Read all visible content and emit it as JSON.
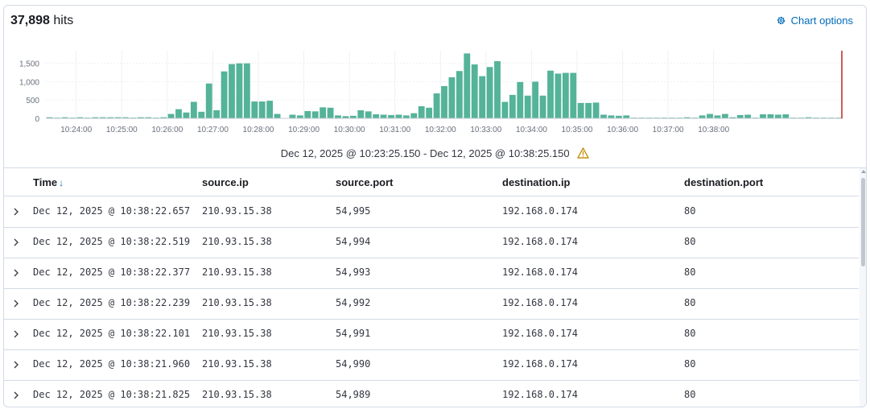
{
  "header": {
    "hits_count": "37,898",
    "hits_label": "hits",
    "chart_options_label": "Chart options",
    "chart_options_icon": "gear-icon"
  },
  "time_range": {
    "label": "Dec 12, 2025 @ 10:23:25.150 - Dec 12, 2025 @ 10:38:25.150",
    "warning_icon": "warning-icon"
  },
  "colors": {
    "bar": "#54b399",
    "marker": "#bd271e",
    "grid": "#eef0f3",
    "accent": "#006bb8"
  },
  "chart_data": {
    "type": "bar",
    "title": "",
    "xlabel": "",
    "ylabel": "",
    "ylim": [
      0,
      1800
    ],
    "y_ticks": [
      0,
      500,
      1000,
      1500
    ],
    "y_tick_labels": [
      "0",
      "500",
      "1,000",
      "1,500"
    ],
    "x_tick_labels": [
      "10:24:00",
      "10:25:00",
      "10:26:00",
      "10:27:00",
      "10:28:00",
      "10:29:00",
      "10:30:00",
      "10:31:00",
      "10:32:00",
      "10:33:00",
      "10:34:00",
      "10:35:00",
      "10:36:00",
      "10:37:00",
      "10:38:00"
    ],
    "interval_seconds": 10,
    "start_time": "10:23:20",
    "grid": true,
    "values": [
      30,
      20,
      30,
      20,
      30,
      20,
      30,
      30,
      30,
      30,
      30,
      20,
      30,
      30,
      20,
      30,
      120,
      250,
      160,
      450,
      180,
      950,
      220,
      1280,
      1480,
      1500,
      1500,
      460,
      460,
      480,
      120,
      10,
      100,
      80,
      200,
      190,
      300,
      290,
      80,
      60,
      70,
      220,
      190,
      110,
      100,
      90,
      100,
      80,
      140,
      330,
      290,
      680,
      880,
      1120,
      1290,
      1770,
      1470,
      1150,
      1400,
      1560,
      450,
      640,
      990,
      620,
      1000,
      620,
      1300,
      1220,
      1240,
      1240,
      420,
      420,
      430,
      100,
      80,
      70,
      80,
      20,
      20,
      20,
      20,
      20,
      20,
      20,
      30,
      20,
      80,
      120,
      80,
      120,
      30,
      90,
      100,
      20,
      110,
      110,
      100,
      110,
      20,
      20,
      30,
      20,
      20,
      20,
      20
    ]
  },
  "table": {
    "columns": [
      "Time",
      "source.ip",
      "source.port",
      "destination.ip",
      "destination.port"
    ],
    "sort_indicator": "↓",
    "rows": [
      {
        "time": "Dec 12, 2025 @ 10:38:22.657",
        "source_ip": "210.93.15.38",
        "source_port": "54,995",
        "destination_ip": "192.168.0.174",
        "destination_port": "80"
      },
      {
        "time": "Dec 12, 2025 @ 10:38:22.519",
        "source_ip": "210.93.15.38",
        "source_port": "54,994",
        "destination_ip": "192.168.0.174",
        "destination_port": "80"
      },
      {
        "time": "Dec 12, 2025 @ 10:38:22.377",
        "source_ip": "210.93.15.38",
        "source_port": "54,993",
        "destination_ip": "192.168.0.174",
        "destination_port": "80"
      },
      {
        "time": "Dec 12, 2025 @ 10:38:22.239",
        "source_ip": "210.93.15.38",
        "source_port": "54,992",
        "destination_ip": "192.168.0.174",
        "destination_port": "80"
      },
      {
        "time": "Dec 12, 2025 @ 10:38:22.101",
        "source_ip": "210.93.15.38",
        "source_port": "54,991",
        "destination_ip": "192.168.0.174",
        "destination_port": "80"
      },
      {
        "time": "Dec 12, 2025 @ 10:38:21.960",
        "source_ip": "210.93.15.38",
        "source_port": "54,990",
        "destination_ip": "192.168.0.174",
        "destination_port": "80"
      },
      {
        "time": "Dec 12, 2025 @ 10:38:21.825",
        "source_ip": "210.93.15.38",
        "source_port": "54,989",
        "destination_ip": "192.168.0.174",
        "destination_port": "80"
      }
    ]
  }
}
